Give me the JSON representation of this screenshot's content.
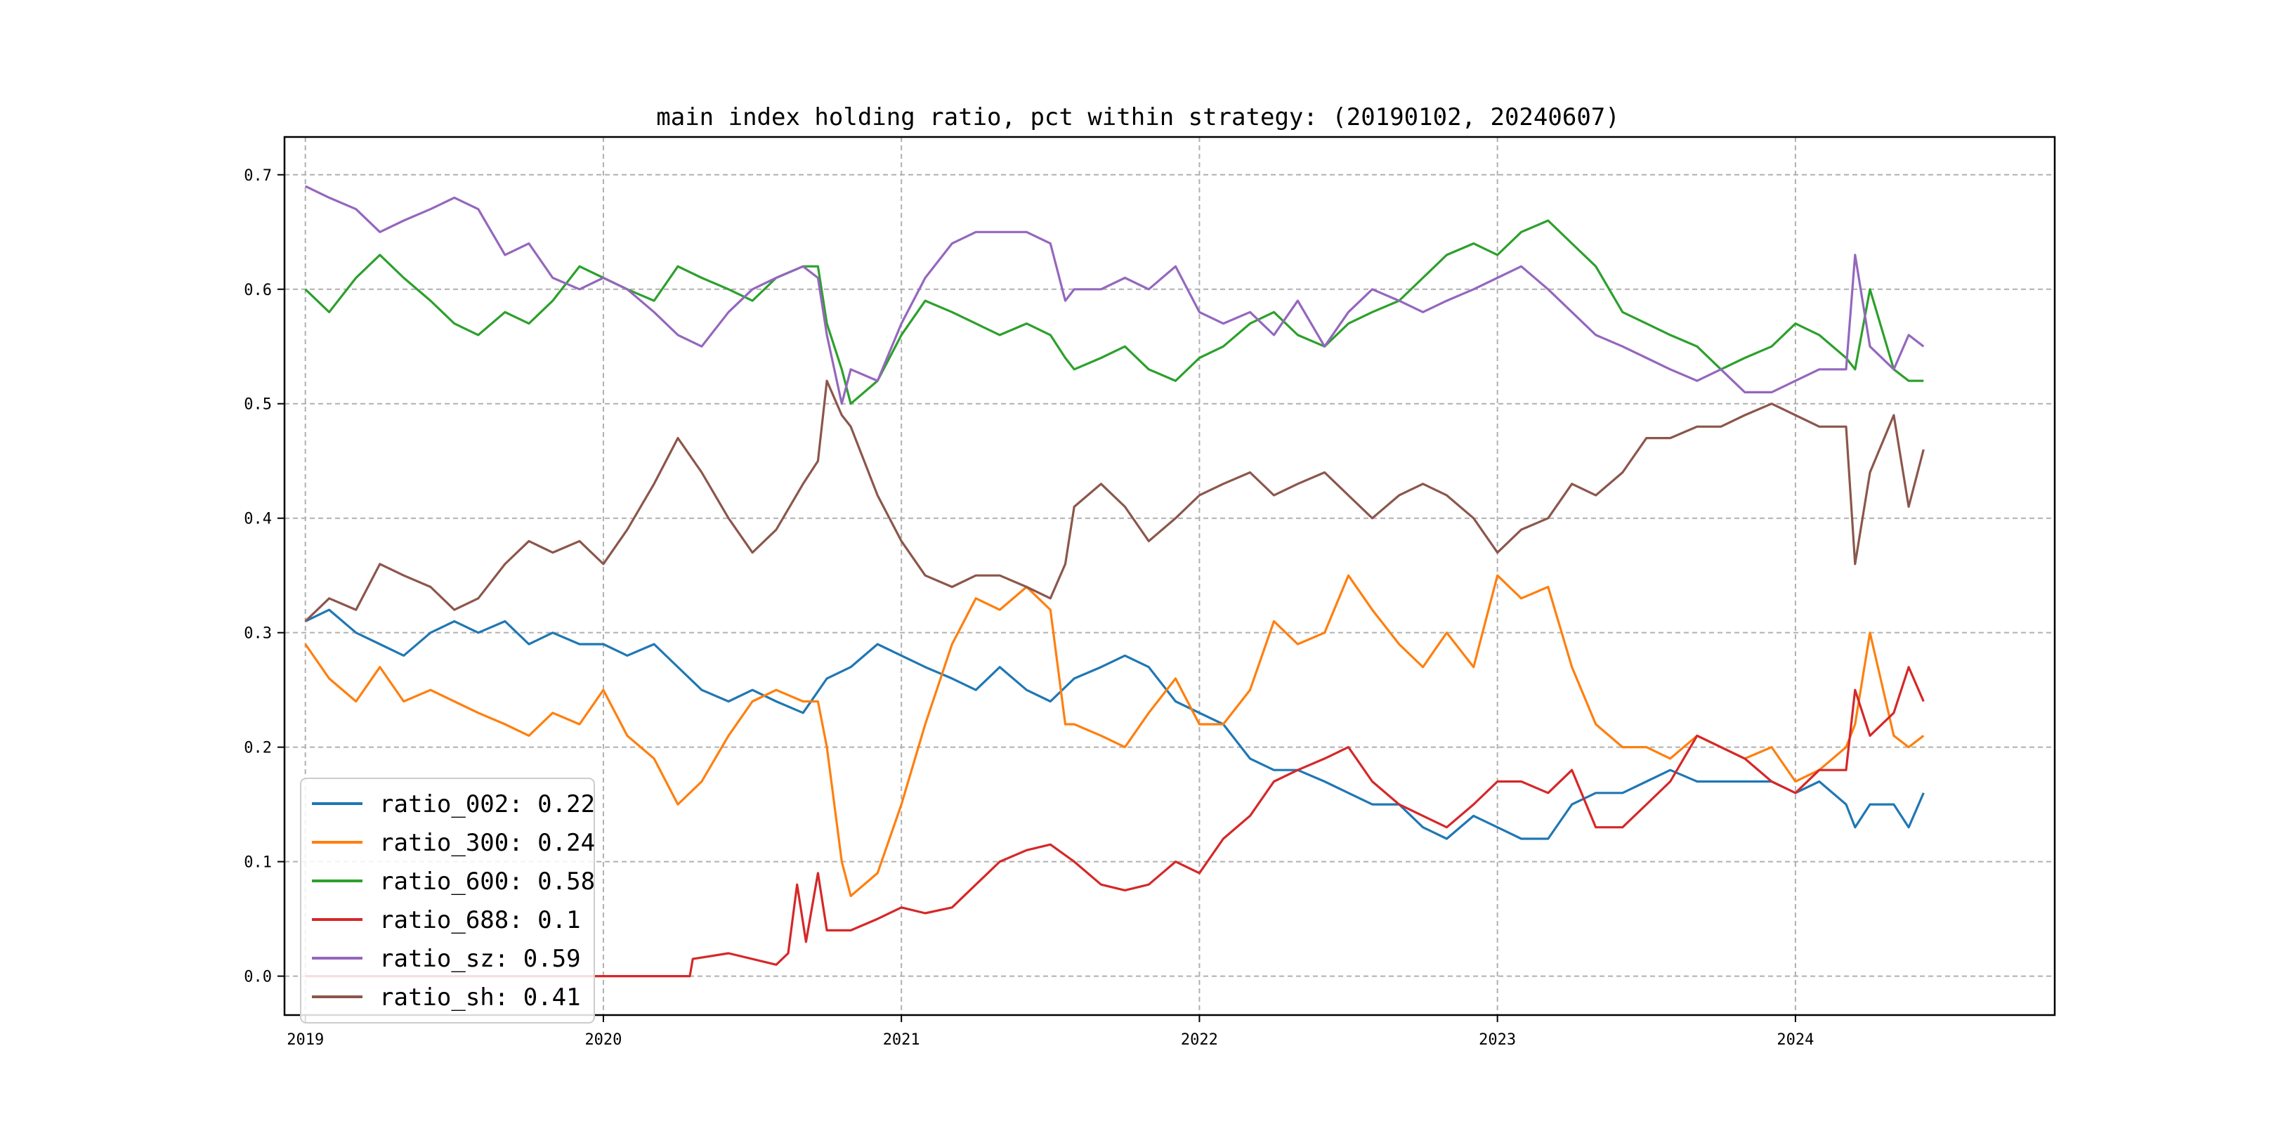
{
  "chart_data": {
    "type": "line",
    "title": "main index holding ratio, pct within strategy: (20190102, 20240607)",
    "xlabel": "",
    "ylabel": "",
    "xlim": [
      2018.93,
      2024.87
    ],
    "ylim": [
      -0.034,
      0.733
    ],
    "xticks": [
      2019,
      2020,
      2021,
      2022,
      2023,
      2024
    ],
    "xtick_labels": [
      "2019",
      "2020",
      "2021",
      "2022",
      "2023",
      "2024"
    ],
    "yticks": [
      0.0,
      0.1,
      0.2,
      0.3,
      0.4,
      0.5,
      0.6,
      0.7
    ],
    "ytick_labels": [
      "0.0",
      "0.1",
      "0.2",
      "0.3",
      "0.4",
      "0.5",
      "0.6",
      "0.7"
    ],
    "grid": true,
    "legend_position": "bottom-left",
    "series": [
      {
        "name": "ratio_002",
        "legend_label": "ratio_002: 0.22",
        "color": "#1f77b4",
        "x": [
          2019.0,
          2019.08,
          2019.17,
          2019.25,
          2019.33,
          2019.42,
          2019.5,
          2019.58,
          2019.67,
          2019.75,
          2019.83,
          2019.92,
          2020.0,
          2020.08,
          2020.17,
          2020.25,
          2020.33,
          2020.42,
          2020.5,
          2020.58,
          2020.67,
          2020.75,
          2020.83,
          2020.92,
          2021.0,
          2021.08,
          2021.17,
          2021.25,
          2021.33,
          2021.42,
          2021.5,
          2021.58,
          2021.67,
          2021.75,
          2021.83,
          2021.92,
          2022.0,
          2022.08,
          2022.17,
          2022.25,
          2022.33,
          2022.42,
          2022.5,
          2022.58,
          2022.67,
          2022.75,
          2022.83,
          2022.92,
          2023.0,
          2023.08,
          2023.17,
          2023.25,
          2023.33,
          2023.42,
          2023.5,
          2023.58,
          2023.67,
          2023.75,
          2023.83,
          2023.92,
          2024.0,
          2024.08,
          2024.17,
          2024.2,
          2024.25,
          2024.33,
          2024.38,
          2024.43
        ],
        "values": [
          0.31,
          0.32,
          0.3,
          0.29,
          0.28,
          0.3,
          0.31,
          0.3,
          0.31,
          0.29,
          0.3,
          0.29,
          0.29,
          0.28,
          0.29,
          0.27,
          0.25,
          0.24,
          0.25,
          0.24,
          0.23,
          0.26,
          0.27,
          0.29,
          0.28,
          0.27,
          0.26,
          0.25,
          0.27,
          0.25,
          0.24,
          0.26,
          0.27,
          0.28,
          0.27,
          0.24,
          0.23,
          0.22,
          0.19,
          0.18,
          0.18,
          0.17,
          0.16,
          0.15,
          0.15,
          0.13,
          0.12,
          0.14,
          0.13,
          0.12,
          0.12,
          0.15,
          0.16,
          0.16,
          0.17,
          0.18,
          0.17,
          0.17,
          0.17,
          0.17,
          0.16,
          0.17,
          0.15,
          0.13,
          0.15,
          0.15,
          0.13,
          0.16
        ]
      },
      {
        "name": "ratio_300",
        "legend_label": "ratio_300: 0.24",
        "color": "#ff7f0e",
        "x": [
          2019.0,
          2019.08,
          2019.17,
          2019.25,
          2019.33,
          2019.42,
          2019.5,
          2019.58,
          2019.67,
          2019.75,
          2019.83,
          2019.92,
          2020.0,
          2020.08,
          2020.17,
          2020.25,
          2020.33,
          2020.42,
          2020.5,
          2020.58,
          2020.67,
          2020.72,
          2020.75,
          2020.8,
          2020.83,
          2020.92,
          2021.0,
          2021.08,
          2021.17,
          2021.25,
          2021.33,
          2021.42,
          2021.5,
          2021.55,
          2021.58,
          2021.67,
          2021.75,
          2021.83,
          2021.92,
          2022.0,
          2022.08,
          2022.17,
          2022.25,
          2022.33,
          2022.42,
          2022.5,
          2022.58,
          2022.67,
          2022.75,
          2022.83,
          2022.92,
          2023.0,
          2023.08,
          2023.17,
          2023.25,
          2023.33,
          2023.42,
          2023.5,
          2023.58,
          2023.67,
          2023.75,
          2023.83,
          2023.92,
          2024.0,
          2024.08,
          2024.17,
          2024.2,
          2024.25,
          2024.33,
          2024.38,
          2024.43
        ],
        "values": [
          0.29,
          0.26,
          0.24,
          0.27,
          0.24,
          0.25,
          0.24,
          0.23,
          0.22,
          0.21,
          0.23,
          0.22,
          0.25,
          0.21,
          0.19,
          0.15,
          0.17,
          0.21,
          0.24,
          0.25,
          0.24,
          0.24,
          0.2,
          0.1,
          0.07,
          0.09,
          0.15,
          0.22,
          0.29,
          0.33,
          0.32,
          0.34,
          0.32,
          0.22,
          0.22,
          0.21,
          0.2,
          0.23,
          0.26,
          0.22,
          0.22,
          0.25,
          0.31,
          0.29,
          0.3,
          0.35,
          0.32,
          0.29,
          0.27,
          0.3,
          0.27,
          0.35,
          0.33,
          0.34,
          0.27,
          0.22,
          0.2,
          0.2,
          0.19,
          0.21,
          0.2,
          0.19,
          0.2,
          0.17,
          0.18,
          0.2,
          0.22,
          0.3,
          0.21,
          0.2,
          0.21
        ]
      },
      {
        "name": "ratio_600",
        "legend_label": "ratio_600: 0.58",
        "color": "#2ca02c",
        "x": [
          2019.0,
          2019.08,
          2019.17,
          2019.25,
          2019.33,
          2019.42,
          2019.5,
          2019.58,
          2019.67,
          2019.75,
          2019.83,
          2019.92,
          2020.0,
          2020.08,
          2020.17,
          2020.25,
          2020.33,
          2020.42,
          2020.5,
          2020.58,
          2020.67,
          2020.72,
          2020.75,
          2020.8,
          2020.83,
          2020.92,
          2021.0,
          2021.08,
          2021.17,
          2021.25,
          2021.33,
          2021.42,
          2021.5,
          2021.55,
          2021.58,
          2021.67,
          2021.75,
          2021.83,
          2021.92,
          2022.0,
          2022.08,
          2022.17,
          2022.25,
          2022.33,
          2022.42,
          2022.5,
          2022.58,
          2022.67,
          2022.75,
          2022.83,
          2022.92,
          2023.0,
          2023.08,
          2023.17,
          2023.25,
          2023.33,
          2023.42,
          2023.5,
          2023.58,
          2023.67,
          2023.75,
          2023.83,
          2023.92,
          2024.0,
          2024.08,
          2024.17,
          2024.2,
          2024.25,
          2024.33,
          2024.38,
          2024.43
        ],
        "values": [
          0.6,
          0.58,
          0.61,
          0.63,
          0.61,
          0.59,
          0.57,
          0.56,
          0.58,
          0.57,
          0.59,
          0.62,
          0.61,
          0.6,
          0.59,
          0.62,
          0.61,
          0.6,
          0.59,
          0.61,
          0.62,
          0.62,
          0.57,
          0.53,
          0.5,
          0.52,
          0.56,
          0.59,
          0.58,
          0.57,
          0.56,
          0.57,
          0.56,
          0.54,
          0.53,
          0.54,
          0.55,
          0.53,
          0.52,
          0.54,
          0.55,
          0.57,
          0.58,
          0.56,
          0.55,
          0.57,
          0.58,
          0.59,
          0.61,
          0.63,
          0.64,
          0.63,
          0.65,
          0.66,
          0.64,
          0.62,
          0.58,
          0.57,
          0.56,
          0.55,
          0.53,
          0.54,
          0.55,
          0.57,
          0.56,
          0.54,
          0.53,
          0.6,
          0.53,
          0.52,
          0.52
        ]
      },
      {
        "name": "ratio_688",
        "legend_label": "ratio_688: 0.1",
        "color": "#d62728",
        "x": [
          2019.0,
          2019.5,
          2020.0,
          2020.29,
          2020.3,
          2020.42,
          2020.58,
          2020.62,
          2020.65,
          2020.68,
          2020.72,
          2020.75,
          2020.83,
          2020.92,
          2021.0,
          2021.08,
          2021.17,
          2021.25,
          2021.33,
          2021.42,
          2021.5,
          2021.58,
          2021.67,
          2021.75,
          2021.83,
          2021.92,
          2022.0,
          2022.08,
          2022.17,
          2022.25,
          2022.33,
          2022.42,
          2022.5,
          2022.58,
          2022.67,
          2022.75,
          2022.83,
          2022.92,
          2023.0,
          2023.08,
          2023.17,
          2023.25,
          2023.33,
          2023.42,
          2023.5,
          2023.58,
          2023.67,
          2023.75,
          2023.83,
          2023.92,
          2024.0,
          2024.08,
          2024.17,
          2024.2,
          2024.25,
          2024.33,
          2024.38,
          2024.43
        ],
        "values": [
          0.0,
          0.0,
          0.0,
          0.0,
          0.015,
          0.02,
          0.01,
          0.02,
          0.08,
          0.03,
          0.09,
          0.04,
          0.04,
          0.05,
          0.06,
          0.055,
          0.06,
          0.08,
          0.1,
          0.11,
          0.115,
          0.1,
          0.08,
          0.075,
          0.08,
          0.1,
          0.09,
          0.12,
          0.14,
          0.17,
          0.18,
          0.19,
          0.2,
          0.17,
          0.15,
          0.14,
          0.13,
          0.15,
          0.17,
          0.17,
          0.16,
          0.18,
          0.13,
          0.13,
          0.15,
          0.17,
          0.21,
          0.2,
          0.19,
          0.17,
          0.16,
          0.18,
          0.18,
          0.25,
          0.21,
          0.23,
          0.27,
          0.24
        ]
      },
      {
        "name": "ratio_sz",
        "legend_label": "ratio_sz: 0.59",
        "color": "#9467bd",
        "x": [
          2019.0,
          2019.08,
          2019.17,
          2019.25,
          2019.33,
          2019.42,
          2019.5,
          2019.58,
          2019.67,
          2019.75,
          2019.83,
          2019.92,
          2020.0,
          2020.08,
          2020.17,
          2020.25,
          2020.33,
          2020.42,
          2020.5,
          2020.58,
          2020.67,
          2020.72,
          2020.75,
          2020.8,
          2020.83,
          2020.92,
          2021.0,
          2021.08,
          2021.17,
          2021.25,
          2021.33,
          2021.42,
          2021.5,
          2021.55,
          2021.58,
          2021.67,
          2021.75,
          2021.83,
          2021.92,
          2022.0,
          2022.08,
          2022.17,
          2022.25,
          2022.33,
          2022.42,
          2022.5,
          2022.58,
          2022.67,
          2022.75,
          2022.83,
          2022.92,
          2023.0,
          2023.08,
          2023.17,
          2023.25,
          2023.33,
          2023.42,
          2023.5,
          2023.58,
          2023.67,
          2023.75,
          2023.83,
          2023.92,
          2024.0,
          2024.08,
          2024.17,
          2024.2,
          2024.25,
          2024.33,
          2024.38,
          2024.43
        ],
        "values": [
          0.69,
          0.68,
          0.67,
          0.65,
          0.66,
          0.67,
          0.68,
          0.67,
          0.63,
          0.64,
          0.61,
          0.6,
          0.61,
          0.6,
          0.58,
          0.56,
          0.55,
          0.58,
          0.6,
          0.61,
          0.62,
          0.61,
          0.56,
          0.5,
          0.53,
          0.52,
          0.57,
          0.61,
          0.64,
          0.65,
          0.65,
          0.65,
          0.64,
          0.59,
          0.6,
          0.6,
          0.61,
          0.6,
          0.62,
          0.58,
          0.57,
          0.58,
          0.56,
          0.59,
          0.55,
          0.58,
          0.6,
          0.59,
          0.58,
          0.59,
          0.6,
          0.61,
          0.62,
          0.6,
          0.58,
          0.56,
          0.55,
          0.54,
          0.53,
          0.52,
          0.53,
          0.51,
          0.51,
          0.52,
          0.53,
          0.53,
          0.63,
          0.55,
          0.53,
          0.56,
          0.55
        ]
      },
      {
        "name": "ratio_sh",
        "legend_label": "ratio_sh: 0.41",
        "color": "#8c564b",
        "x": [
          2019.0,
          2019.08,
          2019.17,
          2019.25,
          2019.33,
          2019.42,
          2019.5,
          2019.58,
          2019.67,
          2019.75,
          2019.83,
          2019.92,
          2020.0,
          2020.08,
          2020.17,
          2020.25,
          2020.33,
          2020.42,
          2020.5,
          2020.58,
          2020.67,
          2020.72,
          2020.75,
          2020.8,
          2020.83,
          2020.92,
          2021.0,
          2021.08,
          2021.17,
          2021.25,
          2021.33,
          2021.42,
          2021.5,
          2021.55,
          2021.58,
          2021.67,
          2021.75,
          2021.83,
          2021.92,
          2022.0,
          2022.08,
          2022.17,
          2022.25,
          2022.33,
          2022.42,
          2022.5,
          2022.58,
          2022.67,
          2022.75,
          2022.83,
          2022.92,
          2023.0,
          2023.08,
          2023.17,
          2023.25,
          2023.33,
          2023.42,
          2023.5,
          2023.58,
          2023.67,
          2023.75,
          2023.83,
          2023.92,
          2024.0,
          2024.08,
          2024.17,
          2024.2,
          2024.25,
          2024.33,
          2024.38,
          2024.43
        ],
        "values": [
          0.31,
          0.33,
          0.32,
          0.36,
          0.35,
          0.34,
          0.32,
          0.33,
          0.36,
          0.38,
          0.37,
          0.38,
          0.36,
          0.39,
          0.43,
          0.47,
          0.44,
          0.4,
          0.37,
          0.39,
          0.43,
          0.45,
          0.52,
          0.49,
          0.48,
          0.42,
          0.38,
          0.35,
          0.34,
          0.35,
          0.35,
          0.34,
          0.33,
          0.36,
          0.41,
          0.43,
          0.41,
          0.38,
          0.4,
          0.42,
          0.43,
          0.44,
          0.42,
          0.43,
          0.44,
          0.42,
          0.4,
          0.42,
          0.43,
          0.42,
          0.4,
          0.37,
          0.39,
          0.4,
          0.43,
          0.42,
          0.44,
          0.47,
          0.47,
          0.48,
          0.48,
          0.49,
          0.5,
          0.49,
          0.48,
          0.48,
          0.36,
          0.44,
          0.49,
          0.41,
          0.46
        ]
      }
    ]
  }
}
